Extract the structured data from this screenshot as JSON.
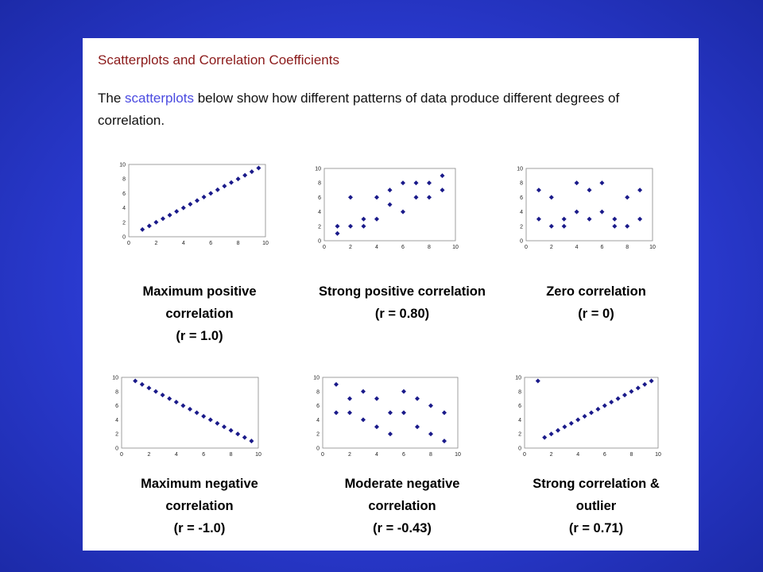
{
  "slide": {
    "heading": "Scatterplots and Correlation Coefficients",
    "intro_before": "The ",
    "intro_link": "scatterplots",
    "intro_after": " below show how different patterns of data produce different degrees of correlation.",
    "colors": {
      "background": "#2a3ad0",
      "heading": "#8b1a1a",
      "link": "#4a4ae0",
      "marker": "#1a1a8a"
    }
  },
  "chart_data": [
    {
      "id": "max-positive",
      "type": "scatter",
      "caption_lines": [
        "Maximum positive",
        "correlation",
        "(r = 1.0)"
      ],
      "xlim": [
        0,
        10
      ],
      "ylim": [
        0,
        10
      ],
      "xticks": [
        "0",
        "2",
        "4",
        "6",
        "8",
        "10"
      ],
      "yticks": [
        "0",
        "2",
        "4",
        "6",
        "8",
        "10"
      ],
      "points": [
        [
          1,
          1
        ],
        [
          1.5,
          1.5
        ],
        [
          2,
          2
        ],
        [
          2.5,
          2.5
        ],
        [
          3,
          3
        ],
        [
          3.5,
          3.5
        ],
        [
          4,
          4
        ],
        [
          4.5,
          4.5
        ],
        [
          5,
          5
        ],
        [
          5.5,
          5.5
        ],
        [
          6,
          6
        ],
        [
          6.5,
          6.5
        ],
        [
          7,
          7
        ],
        [
          7.5,
          7.5
        ],
        [
          8,
          8
        ],
        [
          8.5,
          8.5
        ],
        [
          9,
          9
        ],
        [
          9.5,
          9.5
        ]
      ]
    },
    {
      "id": "strong-positive",
      "type": "scatter",
      "caption_lines": [
        "Strong positive correlation",
        "(r = 0.80)"
      ],
      "xlim": [
        0,
        10
      ],
      "ylim": [
        0,
        10
      ],
      "xticks": [
        "0",
        "2",
        "4",
        "6",
        "8",
        "10"
      ],
      "yticks": [
        "0",
        "2",
        "4",
        "6",
        "8",
        "10"
      ],
      "points": [
        [
          1,
          1
        ],
        [
          1,
          2
        ],
        [
          2,
          2
        ],
        [
          2,
          6
        ],
        [
          3,
          2
        ],
        [
          3,
          3
        ],
        [
          4,
          3
        ],
        [
          4,
          6
        ],
        [
          5,
          5
        ],
        [
          5,
          7
        ],
        [
          6,
          4
        ],
        [
          6,
          8
        ],
        [
          7,
          6
        ],
        [
          7,
          8
        ],
        [
          8,
          6
        ],
        [
          8,
          8
        ],
        [
          9,
          7
        ],
        [
          9,
          9
        ]
      ]
    },
    {
      "id": "zero",
      "type": "scatter",
      "caption_lines": [
        "Zero correlation",
        "(r = 0)"
      ],
      "xlim": [
        0,
        10
      ],
      "ylim": [
        0,
        10
      ],
      "xticks": [
        "0",
        "2",
        "4",
        "6",
        "8",
        "10"
      ],
      "yticks": [
        "0",
        "2",
        "4",
        "6",
        "8",
        "10"
      ],
      "points": [
        [
          1,
          3
        ],
        [
          1,
          7
        ],
        [
          2,
          2
        ],
        [
          2,
          6
        ],
        [
          3,
          2
        ],
        [
          3,
          3
        ],
        [
          4,
          4
        ],
        [
          4,
          8
        ],
        [
          5,
          3
        ],
        [
          5,
          7
        ],
        [
          6,
          4
        ],
        [
          6,
          8
        ],
        [
          7,
          2
        ],
        [
          7,
          3
        ],
        [
          8,
          2
        ],
        [
          8,
          6
        ],
        [
          9,
          3
        ],
        [
          9,
          7
        ]
      ]
    },
    {
      "id": "max-negative",
      "type": "scatter",
      "caption_lines": [
        "Maximum negative",
        "correlation",
        "(r = -1.0)"
      ],
      "xlim": [
        0,
        10
      ],
      "ylim": [
        0,
        10
      ],
      "xticks": [
        "0",
        "2",
        "4",
        "6",
        "8",
        "10"
      ],
      "yticks": [
        "0",
        "2",
        "4",
        "6",
        "8",
        "10"
      ],
      "points": [
        [
          1,
          9.5
        ],
        [
          1.5,
          9
        ],
        [
          2,
          8.5
        ],
        [
          2.5,
          8
        ],
        [
          3,
          7.5
        ],
        [
          3.5,
          7
        ],
        [
          4,
          6.5
        ],
        [
          4.5,
          6
        ],
        [
          5,
          5.5
        ],
        [
          5.5,
          5
        ],
        [
          6,
          4.5
        ],
        [
          6.5,
          4
        ],
        [
          7,
          3.5
        ],
        [
          7.5,
          3
        ],
        [
          8,
          2.5
        ],
        [
          8.5,
          2
        ],
        [
          9,
          1.5
        ],
        [
          9.5,
          1
        ]
      ]
    },
    {
      "id": "moderate-negative",
      "type": "scatter",
      "caption_lines": [
        "Moderate negative",
        "correlation",
        "(r = -0.43)"
      ],
      "xlim": [
        0,
        10
      ],
      "ylim": [
        0,
        10
      ],
      "xticks": [
        "0",
        "2",
        "4",
        "6",
        "8",
        "10"
      ],
      "yticks": [
        "0",
        "2",
        "4",
        "6",
        "8",
        "10"
      ],
      "points": [
        [
          1,
          5
        ],
        [
          1,
          9
        ],
        [
          2,
          5
        ],
        [
          2,
          7
        ],
        [
          3,
          4
        ],
        [
          3,
          8
        ],
        [
          4,
          3
        ],
        [
          4,
          7
        ],
        [
          5,
          2
        ],
        [
          5,
          5
        ],
        [
          6,
          5
        ],
        [
          6,
          8
        ],
        [
          7,
          3
        ],
        [
          7,
          7
        ],
        [
          8,
          2
        ],
        [
          8,
          6
        ],
        [
          9,
          1
        ],
        [
          9,
          5
        ]
      ]
    },
    {
      "id": "outlier",
      "type": "scatter",
      "caption_lines": [
        "Strong correlation &",
        "outlier",
        "(r = 0.71)"
      ],
      "xlim": [
        0,
        10
      ],
      "ylim": [
        0,
        10
      ],
      "xticks": [
        "0",
        "2",
        "4",
        "6",
        "8",
        "10"
      ],
      "yticks": [
        "0",
        "2",
        "4",
        "6",
        "8",
        "10"
      ],
      "points": [
        [
          1,
          9.5
        ],
        [
          1.5,
          1.5
        ],
        [
          2,
          2
        ],
        [
          2.5,
          2.5
        ],
        [
          3,
          3
        ],
        [
          3.5,
          3.5
        ],
        [
          4,
          4
        ],
        [
          4.5,
          4.5
        ],
        [
          5,
          5
        ],
        [
          5.5,
          5.5
        ],
        [
          6,
          6
        ],
        [
          6.5,
          6.5
        ],
        [
          7,
          7
        ],
        [
          7.5,
          7.5
        ],
        [
          8,
          8
        ],
        [
          8.5,
          8.5
        ],
        [
          9,
          9
        ],
        [
          9.5,
          9.5
        ]
      ]
    }
  ]
}
